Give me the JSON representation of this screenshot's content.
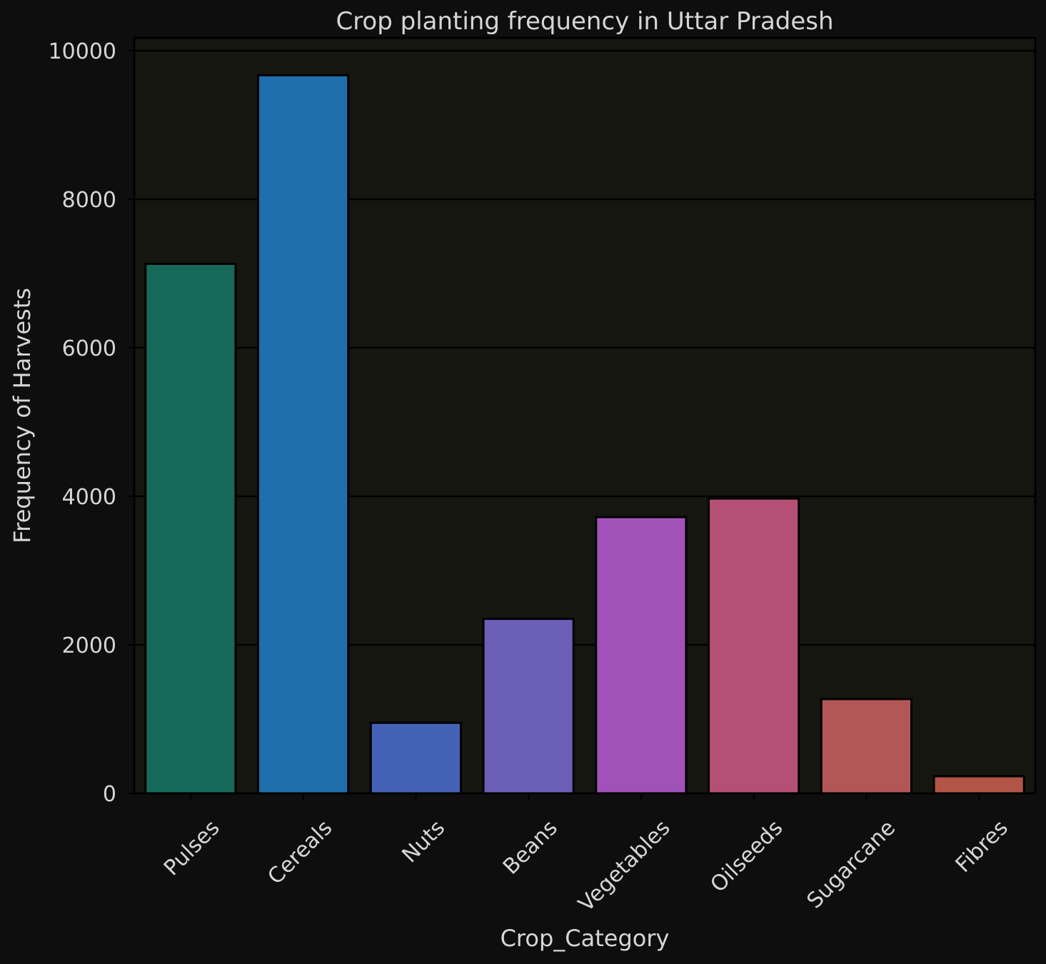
{
  "chart_data": {
    "type": "bar",
    "title": "Crop planting frequency in Uttar Pradesh",
    "xlabel": "Crop_Category",
    "ylabel": "Frequency of Harvests",
    "categories": [
      "Pulses",
      "Cereals",
      "Nuts",
      "Beans",
      "Vegetables",
      "Oilseeds",
      "Sugarcane",
      "Fibres"
    ],
    "values": [
      7130,
      9670,
      950,
      2350,
      3720,
      3970,
      1270,
      230
    ],
    "colors": [
      "#17695a",
      "#1f6fac",
      "#4462b5",
      "#6a5eb7",
      "#a052b8",
      "#b45075",
      "#b35656",
      "#b25546"
    ],
    "ylim": [
      0,
      10150
    ],
    "yticks": [
      0,
      2000,
      4000,
      6000,
      8000,
      10000
    ],
    "grid": true,
    "background": "#0e0e0e",
    "plot_background": "#161610"
  }
}
